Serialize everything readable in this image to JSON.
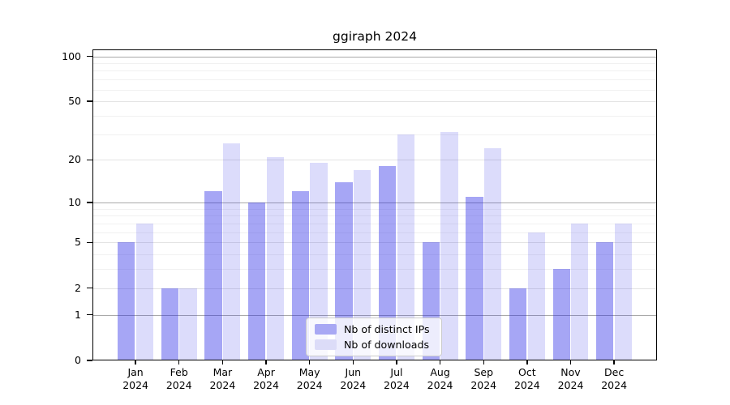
{
  "figure": {
    "title": "ggiraph 2024"
  },
  "chart_data": {
    "type": "bar",
    "title": "ggiraph 2024",
    "categories": [
      {
        "month": "Jan",
        "year": "2024"
      },
      {
        "month": "Feb",
        "year": "2024"
      },
      {
        "month": "Mar",
        "year": "2024"
      },
      {
        "month": "Apr",
        "year": "2024"
      },
      {
        "month": "May",
        "year": "2024"
      },
      {
        "month": "Jun",
        "year": "2024"
      },
      {
        "month": "Jul",
        "year": "2024"
      },
      {
        "month": "Aug",
        "year": "2024"
      },
      {
        "month": "Sep",
        "year": "2024"
      },
      {
        "month": "Oct",
        "year": "2024"
      },
      {
        "month": "Nov",
        "year": "2024"
      },
      {
        "month": "Dec",
        "year": "2024"
      }
    ],
    "series": [
      {
        "name": "Nb of distinct IPs",
        "fill": "rgba(40,40,230,0.41)",
        "fill_flat": "#a8a8f4",
        "values": [
          5,
          2,
          12,
          10,
          12,
          14,
          18,
          5,
          11,
          2,
          3,
          5
        ]
      },
      {
        "name": "Nb of downloads",
        "fill": "rgba(40,40,230,0.165)",
        "fill_flat": "#dcdcf8",
        "values": [
          7,
          2,
          26,
          21,
          19,
          17,
          30,
          31,
          24,
          6,
          7,
          7
        ]
      }
    ],
    "y_axis": {
      "scale": "log1p",
      "ticks": [
        0,
        1,
        2,
        5,
        10,
        20,
        50,
        100
      ],
      "limit": [
        0,
        100
      ],
      "major_gridlines": [
        1,
        10,
        100
      ],
      "labeled_minor_gridlines": [
        2,
        5,
        20,
        50
      ],
      "minor_gridlines": [
        3,
        4,
        6,
        7,
        8,
        9,
        30,
        40,
        60,
        70,
        80,
        90
      ]
    },
    "legend": {
      "position": "lower center",
      "entries": [
        "Nb of distinct IPs",
        "Nb of downloads"
      ]
    },
    "grid": true,
    "xlabel": "",
    "ylabel": ""
  }
}
